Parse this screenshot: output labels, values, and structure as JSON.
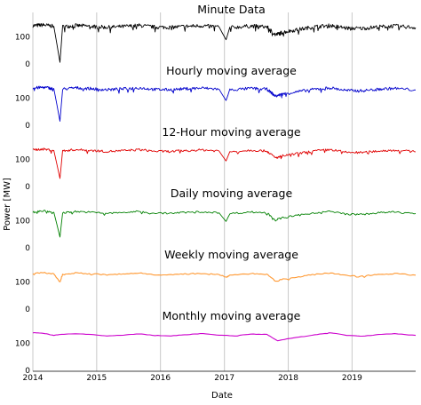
{
  "chart_data": {
    "type": "line",
    "ylabel": "Power [MW]",
    "xlabel": "Date",
    "x_ticks": [
      "2014",
      "2015",
      "2016",
      "2017",
      "2018",
      "2019"
    ],
    "y_ticks": [
      "0",
      "100"
    ],
    "ylim": [
      0,
      165
    ],
    "xlim": [
      "2014-01-01",
      "2019-12-31"
    ],
    "grid": "vertical at year ticks",
    "panels": [
      {
        "title": "Minute Data",
        "color": "#000000",
        "sampled": [
          [
            "2014-01-01",
            142
          ],
          [
            "2014-03-01",
            145
          ],
          [
            "2014-05-01",
            140
          ],
          [
            "2014-06-05",
            6
          ],
          [
            "2014-06-20",
            138
          ],
          [
            "2014-09-01",
            143
          ],
          [
            "2014-12-01",
            140
          ],
          [
            "2015-03-01",
            136
          ],
          [
            "2015-06-01",
            139
          ],
          [
            "2015-09-01",
            143
          ],
          [
            "2015-12-01",
            137
          ],
          [
            "2016-03-01",
            136
          ],
          [
            "2016-06-01",
            140
          ],
          [
            "2016-09-01",
            142
          ],
          [
            "2016-12-01",
            138
          ],
          [
            "2017-01-10",
            90
          ],
          [
            "2017-02-01",
            135
          ],
          [
            "2017-06-01",
            141
          ],
          [
            "2017-09-01",
            138
          ],
          [
            "2017-10-20",
            108
          ],
          [
            "2017-12-01",
            118
          ],
          [
            "2018-03-01",
            128
          ],
          [
            "2018-06-01",
            138
          ],
          [
            "2018-09-01",
            143
          ],
          [
            "2018-12-01",
            133
          ],
          [
            "2019-03-01",
            132
          ],
          [
            "2019-06-01",
            138
          ],
          [
            "2019-09-01",
            141
          ],
          [
            "2019-12-31",
            135
          ]
        ]
      },
      {
        "title": "Hourly moving average",
        "color": "#0000cc",
        "sampled": [
          [
            "2014-01-01",
            138
          ],
          [
            "2014-03-01",
            141
          ],
          [
            "2014-05-01",
            136
          ],
          [
            "2014-06-05",
            15
          ],
          [
            "2014-06-20",
            134
          ],
          [
            "2014-09-01",
            139
          ],
          [
            "2014-12-01",
            136
          ],
          [
            "2015-03-01",
            132
          ],
          [
            "2015-06-01",
            135
          ],
          [
            "2015-09-01",
            139
          ],
          [
            "2015-12-01",
            133
          ],
          [
            "2016-03-01",
            132
          ],
          [
            "2016-06-01",
            136
          ],
          [
            "2016-09-01",
            138
          ],
          [
            "2016-12-01",
            134
          ],
          [
            "2017-01-10",
            92
          ],
          [
            "2017-02-01",
            131
          ],
          [
            "2017-06-01",
            137
          ],
          [
            "2017-09-01",
            134
          ],
          [
            "2017-10-20",
            108
          ],
          [
            "2017-12-01",
            116
          ],
          [
            "2018-03-01",
            125
          ],
          [
            "2018-06-01",
            134
          ],
          [
            "2018-09-01",
            139
          ],
          [
            "2018-12-01",
            129
          ],
          [
            "2019-03-01",
            128
          ],
          [
            "2019-06-01",
            134
          ],
          [
            "2019-09-01",
            137
          ],
          [
            "2019-12-31",
            131
          ]
        ]
      },
      {
        "title": "12-Hour moving average",
        "color": "#e00000",
        "sampled": [
          [
            "2014-01-01",
            136
          ],
          [
            "2014-03-01",
            139
          ],
          [
            "2014-05-01",
            134
          ],
          [
            "2014-06-05",
            30
          ],
          [
            "2014-06-20",
            132
          ],
          [
            "2014-09-01",
            137
          ],
          [
            "2014-12-01",
            134
          ],
          [
            "2015-03-01",
            130
          ],
          [
            "2015-06-01",
            133
          ],
          [
            "2015-09-01",
            137
          ],
          [
            "2015-12-01",
            131
          ],
          [
            "2016-03-01",
            130
          ],
          [
            "2016-06-01",
            134
          ],
          [
            "2016-09-01",
            136
          ],
          [
            "2016-12-01",
            132
          ],
          [
            "2017-01-10",
            95
          ],
          [
            "2017-02-01",
            129
          ],
          [
            "2017-06-01",
            135
          ],
          [
            "2017-09-01",
            132
          ],
          [
            "2017-10-20",
            106
          ],
          [
            "2017-12-01",
            114
          ],
          [
            "2018-03-01",
            123
          ],
          [
            "2018-06-01",
            132
          ],
          [
            "2018-09-01",
            137
          ],
          [
            "2018-12-01",
            127
          ],
          [
            "2019-03-01",
            126
          ],
          [
            "2019-06-01",
            132
          ],
          [
            "2019-09-01",
            135
          ],
          [
            "2019-12-31",
            129
          ]
        ]
      },
      {
        "title": "Daily moving average",
        "color": "#008000",
        "sampled": [
          [
            "2014-01-01",
            134
          ],
          [
            "2014-03-01",
            137
          ],
          [
            "2014-05-01",
            132
          ],
          [
            "2014-06-05",
            40
          ],
          [
            "2014-06-20",
            130
          ],
          [
            "2014-09-01",
            135
          ],
          [
            "2014-12-01",
            132
          ],
          [
            "2015-03-01",
            128
          ],
          [
            "2015-06-01",
            131
          ],
          [
            "2015-09-01",
            135
          ],
          [
            "2015-12-01",
            129
          ],
          [
            "2016-03-01",
            128
          ],
          [
            "2016-06-01",
            132
          ],
          [
            "2016-09-01",
            134
          ],
          [
            "2016-12-01",
            130
          ],
          [
            "2017-01-10",
            98
          ],
          [
            "2017-02-01",
            127
          ],
          [
            "2017-06-01",
            133
          ],
          [
            "2017-09-01",
            130
          ],
          [
            "2017-10-20",
            104
          ],
          [
            "2017-12-01",
            112
          ],
          [
            "2018-03-01",
            121
          ],
          [
            "2018-06-01",
            130
          ],
          [
            "2018-09-01",
            135
          ],
          [
            "2018-12-01",
            125
          ],
          [
            "2019-03-01",
            124
          ],
          [
            "2019-06-01",
            130
          ],
          [
            "2019-09-01",
            133
          ],
          [
            "2019-12-31",
            127
          ]
        ]
      },
      {
        "title": "Weekly moving average",
        "color": "#ff9933",
        "sampled": [
          [
            "2014-01-01",
            132
          ],
          [
            "2014-03-01",
            135
          ],
          [
            "2014-05-01",
            131
          ],
          [
            "2014-06-05",
            100
          ],
          [
            "2014-06-20",
            129
          ],
          [
            "2014-09-01",
            134
          ],
          [
            "2014-12-01",
            131
          ],
          [
            "2015-03-01",
            127
          ],
          [
            "2015-06-01",
            130
          ],
          [
            "2015-09-01",
            134
          ],
          [
            "2015-12-01",
            128
          ],
          [
            "2016-03-01",
            127
          ],
          [
            "2016-06-01",
            131
          ],
          [
            "2016-09-01",
            133
          ],
          [
            "2016-12-01",
            129
          ],
          [
            "2017-01-10",
            118
          ],
          [
            "2017-02-01",
            126
          ],
          [
            "2017-06-01",
            132
          ],
          [
            "2017-09-01",
            129
          ],
          [
            "2017-10-20",
            103
          ],
          [
            "2017-12-01",
            111
          ],
          [
            "2018-03-01",
            120
          ],
          [
            "2018-06-01",
            129
          ],
          [
            "2018-09-01",
            134
          ],
          [
            "2018-12-01",
            124
          ],
          [
            "2019-03-01",
            123
          ],
          [
            "2019-06-01",
            129
          ],
          [
            "2019-09-01",
            132
          ],
          [
            "2019-12-31",
            126
          ]
        ]
      },
      {
        "title": "Monthly moving average",
        "color": "#cc00cc",
        "sampled": [
          [
            "2014-01-01",
            140
          ],
          [
            "2014-03-01",
            138
          ],
          [
            "2014-05-01",
            130
          ],
          [
            "2014-06-15",
            134
          ],
          [
            "2014-09-01",
            136
          ],
          [
            "2014-12-01",
            133
          ],
          [
            "2015-03-01",
            128
          ],
          [
            "2015-06-01",
            131
          ],
          [
            "2015-09-01",
            136
          ],
          [
            "2015-12-01",
            130
          ],
          [
            "2016-03-01",
            128
          ],
          [
            "2016-06-01",
            133
          ],
          [
            "2016-09-01",
            137
          ],
          [
            "2016-12-01",
            131
          ],
          [
            "2017-03-01",
            128
          ],
          [
            "2017-06-01",
            135
          ],
          [
            "2017-09-01",
            134
          ],
          [
            "2017-11-01",
            110
          ],
          [
            "2018-01-01",
            118
          ],
          [
            "2018-04-01",
            126
          ],
          [
            "2018-07-01",
            135
          ],
          [
            "2018-09-01",
            140
          ],
          [
            "2018-12-01",
            130
          ],
          [
            "2019-03-01",
            127
          ],
          [
            "2019-06-01",
            133
          ],
          [
            "2019-09-01",
            136
          ],
          [
            "2019-12-31",
            130
          ]
        ]
      }
    ]
  }
}
